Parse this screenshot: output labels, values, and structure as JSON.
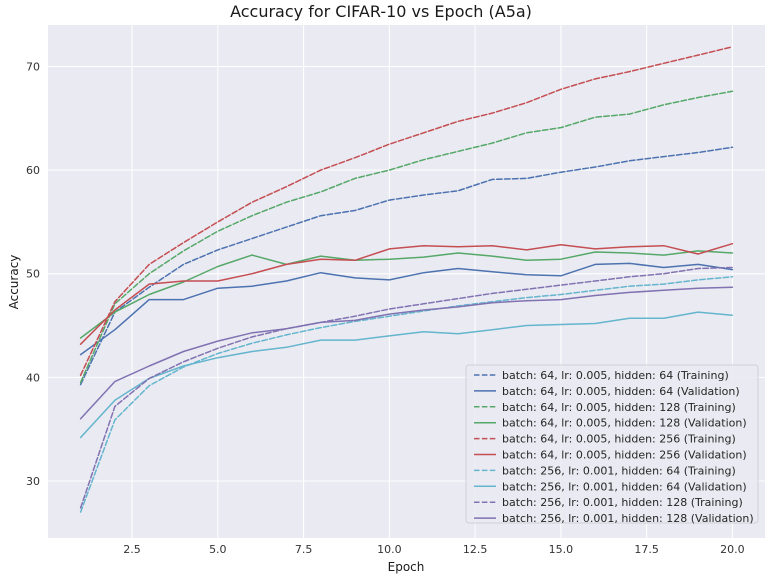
{
  "chart_data": {
    "type": "line",
    "title": "Accuracy for CIFAR-10 vs Epoch (A5a)",
    "xlabel": "Epoch",
    "ylabel": "Accuracy",
    "xlim": [
      0.05,
      20.95
    ],
    "ylim": [
      24.5,
      74
    ],
    "xticks": [
      2.5,
      5.0,
      7.5,
      10.0,
      12.5,
      15.0,
      17.5,
      20.0
    ],
    "xtick_labels": [
      "2.5",
      "5.0",
      "7.5",
      "10.0",
      "12.5",
      "15.0",
      "17.5",
      "20.0"
    ],
    "yticks": [
      30,
      40,
      50,
      60,
      70
    ],
    "ytick_labels": [
      "30",
      "40",
      "50",
      "60",
      "70"
    ],
    "grid": true,
    "legend_position": "lower-right",
    "x": [
      1,
      2,
      3,
      4,
      5,
      6,
      7,
      8,
      9,
      10,
      11,
      12,
      13,
      14,
      15,
      16,
      17,
      18,
      19,
      20
    ],
    "series": [
      {
        "name": "batch: 64, lr: 0.005, hidden: 64 (Training)",
        "color": "#4c72b0",
        "dash": "dashed",
        "values": [
          39.3,
          46.3,
          48.7,
          50.9,
          52.3,
          53.4,
          54.5,
          55.6,
          56.1,
          57.1,
          57.6,
          58.0,
          59.1,
          59.2,
          59.8,
          60.3,
          60.9,
          61.3,
          61.7,
          62.2
        ]
      },
      {
        "name": "batch: 64, lr: 0.005, hidden: 64 (Validation)",
        "color": "#4c72b0",
        "dash": "solid",
        "values": [
          42.2,
          44.6,
          47.5,
          47.5,
          48.6,
          48.8,
          49.3,
          50.1,
          49.6,
          49.4,
          50.1,
          50.5,
          50.2,
          49.9,
          49.8,
          50.9,
          51.0,
          50.6,
          50.9,
          50.4
        ]
      },
      {
        "name": "batch: 64, lr: 0.005, hidden: 128 (Training)",
        "color": "#55a868",
        "dash": "dashed",
        "values": [
          39.5,
          47.1,
          50.0,
          52.2,
          54.1,
          55.6,
          56.9,
          57.9,
          59.2,
          60.0,
          61.0,
          61.8,
          62.6,
          63.6,
          64.1,
          65.1,
          65.4,
          66.3,
          67.0,
          67.6
        ]
      },
      {
        "name": "batch: 64, lr: 0.005, hidden: 128 (Validation)",
        "color": "#55a868",
        "dash": "solid",
        "values": [
          43.8,
          46.3,
          48.0,
          49.2,
          50.7,
          51.8,
          50.9,
          51.7,
          51.3,
          51.4,
          51.6,
          52.0,
          51.7,
          51.3,
          51.4,
          52.1,
          52.0,
          51.8,
          52.2,
          52.0
        ]
      },
      {
        "name": "batch: 64, lr: 0.005, hidden: 256 (Training)",
        "color": "#c44e52",
        "dash": "dashed",
        "values": [
          40.2,
          47.3,
          50.9,
          53.0,
          55.0,
          56.9,
          58.4,
          60.0,
          61.2,
          62.5,
          63.6,
          64.7,
          65.5,
          66.5,
          67.8,
          68.8,
          69.5,
          70.3,
          71.1,
          71.9
        ]
      },
      {
        "name": "batch: 64, lr: 0.005, hidden: 256 (Validation)",
        "color": "#c44e52",
        "dash": "solid",
        "values": [
          43.2,
          46.5,
          49.0,
          49.3,
          49.3,
          50.0,
          50.9,
          51.4,
          51.3,
          52.4,
          52.7,
          52.6,
          52.7,
          52.3,
          52.8,
          52.4,
          52.6,
          52.7,
          51.9,
          52.9
        ]
      },
      {
        "name": "batch: 256, lr: 0.001, hidden: 64 (Training)",
        "color": "#64b5cd",
        "dash": "dashed",
        "values": [
          27.0,
          35.9,
          39.2,
          41.0,
          42.3,
          43.3,
          44.1,
          44.8,
          45.4,
          45.9,
          46.4,
          46.9,
          47.3,
          47.7,
          48.0,
          48.4,
          48.8,
          49.0,
          49.4,
          49.7
        ]
      },
      {
        "name": "batch: 256, lr: 0.001, hidden: 64 (Validation)",
        "color": "#64b5cd",
        "dash": "solid",
        "values": [
          34.2,
          37.8,
          39.9,
          41.1,
          41.9,
          42.5,
          42.9,
          43.6,
          43.6,
          44.0,
          44.4,
          44.2,
          44.6,
          45.0,
          45.1,
          45.2,
          45.7,
          45.7,
          46.3,
          46.0
        ]
      },
      {
        "name": "batch: 256, lr: 0.001, hidden: 128 (Training)",
        "color": "#8172b2",
        "dash": "dashed",
        "values": [
          27.4,
          37.2,
          39.9,
          41.5,
          42.8,
          43.9,
          44.7,
          45.3,
          45.9,
          46.6,
          47.1,
          47.6,
          48.1,
          48.5,
          48.9,
          49.3,
          49.7,
          50.0,
          50.5,
          50.6
        ]
      },
      {
        "name": "batch: 256, lr: 0.001, hidden: 128 (Validation)",
        "color": "#8172b2",
        "dash": "solid",
        "values": [
          36.0,
          39.6,
          41.1,
          42.5,
          43.5,
          44.3,
          44.7,
          45.3,
          45.5,
          46.1,
          46.5,
          46.8,
          47.2,
          47.4,
          47.5,
          47.9,
          48.2,
          48.4,
          48.6,
          48.7
        ]
      }
    ]
  }
}
